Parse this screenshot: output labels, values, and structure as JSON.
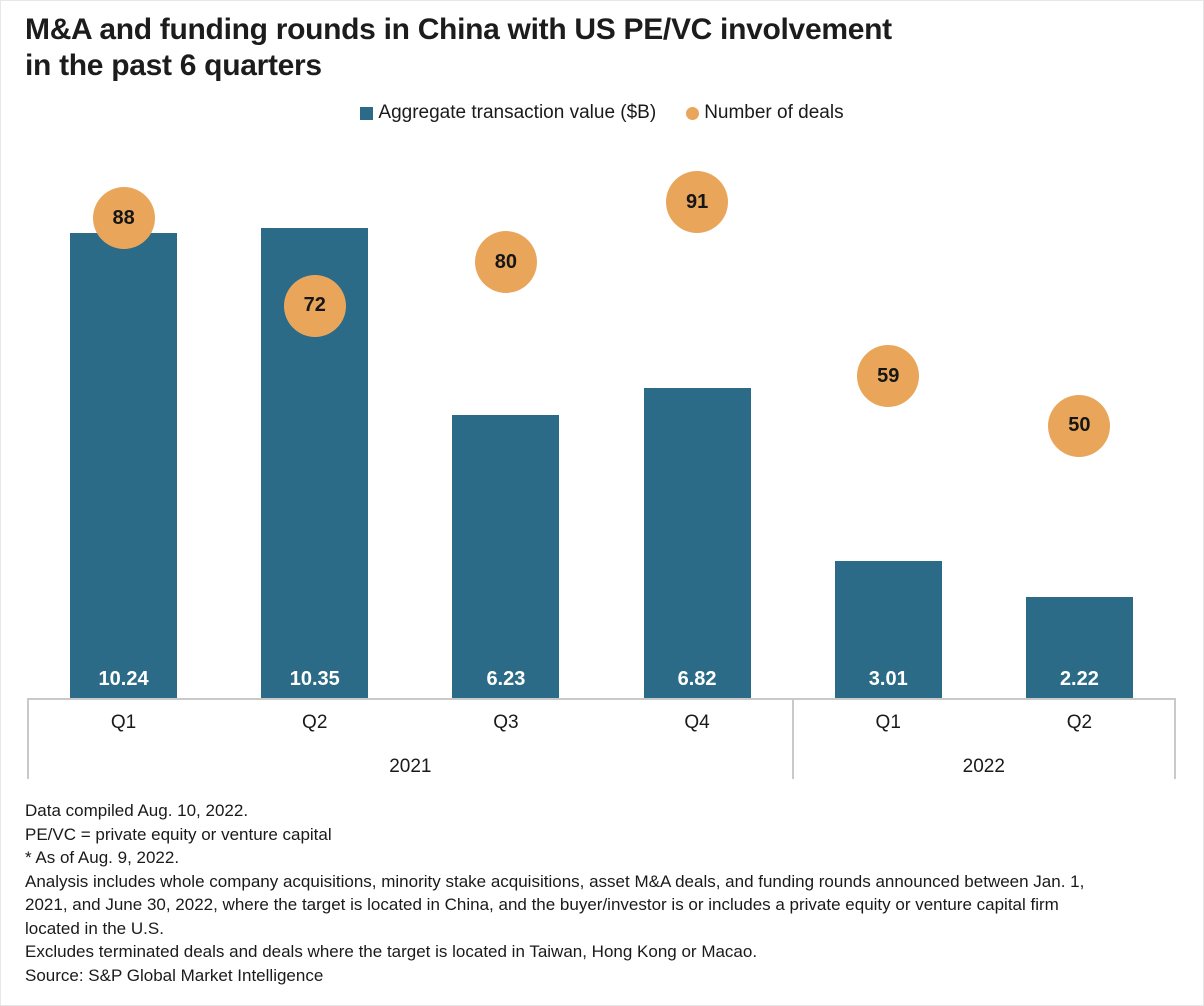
{
  "title": {
    "line1": "M&A and funding rounds in China with US PE/VC involvement",
    "line2": "in the past 6 quarters"
  },
  "legend": {
    "items": [
      {
        "label": "Aggregate transaction value ($B)",
        "shape": "square",
        "color": "#2c6b88"
      },
      {
        "label": "Number of deals",
        "shape": "circle",
        "color": "#e9a65b"
      }
    ]
  },
  "chart_data": {
    "type": "bar",
    "title": "M&A and funding rounds in China with US PE/VC involvement in the past 6 quarters",
    "categories": [
      "Q1",
      "Q2",
      "Q3",
      "Q4",
      "Q1",
      "Q2"
    ],
    "year_groups": [
      {
        "label": "2021",
        "start": 0,
        "end": 3
      },
      {
        "label": "2022",
        "start": 4,
        "end": 5
      }
    ],
    "series": [
      {
        "name": "Aggregate transaction value ($B)",
        "type": "bar",
        "values": [
          10.24,
          10.35,
          6.23,
          6.82,
          3.01,
          2.22
        ],
        "color": "#2c6b88",
        "axis_min": 0,
        "axis_max": 12
      },
      {
        "name": "Number of deals",
        "type": "point",
        "values": [
          88,
          72,
          80,
          91,
          59,
          50
        ],
        "color": "#e9a65b",
        "axis_min": 0,
        "axis_max": 100
      }
    ],
    "grid": false,
    "legend_position": "top",
    "bar_label_color": "#ffffff",
    "point_label_color": "#161616",
    "axis_line_color": "#c9c9c9"
  },
  "footnotes": [
    "Data compiled Aug. 10, 2022.",
    "PE/VC = private equity or venture capital",
    "* As of Aug. 9, 2022.",
    "Analysis includes whole company acquisitions, minority stake acquisitions, asset M&A deals, and funding rounds announced between Jan. 1, 2021, and June 30, 2022, where the target is located in China, and the buyer/investor is or includes a private equity or venture capital firm located in the U.S.",
    "Excludes terminated deals and deals where the target is located in Taiwan, Hong Kong or Macao.",
    "Source: S&P Global Market Intelligence"
  ]
}
